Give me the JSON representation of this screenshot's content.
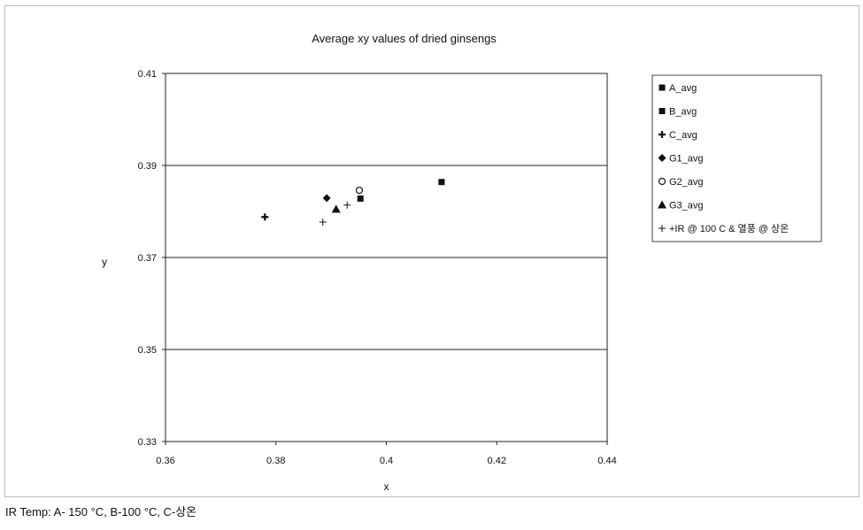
{
  "chart_data": {
    "type": "scatter",
    "title": "Average xy values of dried ginsengs",
    "xlabel": "x",
    "ylabel": "y",
    "xlim": [
      0.36,
      0.44
    ],
    "ylim": [
      0.33,
      0.41
    ],
    "x_ticks": [
      "0.36",
      "0.38",
      "0.4",
      "0.42",
      "0.44"
    ],
    "y_ticks": [
      "0.33",
      "0.35",
      "0.37",
      "0.39",
      "0.41"
    ],
    "x_tick_values": [
      0.36,
      0.38,
      0.4,
      0.42,
      0.44
    ],
    "y_tick_values": [
      0.33,
      0.35,
      0.37,
      0.39,
      0.41
    ],
    "grid": "horizontal",
    "legend_position": "right",
    "series": [
      {
        "name": "A_avg",
        "marker": "square",
        "points": [
          [
            0.41,
            0.3864
          ]
        ]
      },
      {
        "name": "B_avg",
        "marker": "square",
        "points": [
          [
            0.3953,
            0.3828
          ]
        ]
      },
      {
        "name": "C_avg",
        "marker": "cross-bold",
        "points": [
          [
            0.378,
            0.3788
          ]
        ]
      },
      {
        "name": "G1_avg",
        "marker": "diamond",
        "points": [
          [
            0.3892,
            0.3829
          ]
        ]
      },
      {
        "name": "G2_avg",
        "marker": "circle-open",
        "points": [
          [
            0.3951,
            0.3846
          ]
        ]
      },
      {
        "name": "G3_avg",
        "marker": "triangle",
        "points": [
          [
            0.3909,
            0.3805
          ]
        ]
      },
      {
        "name": "+IR @ 100 C & 열풍 @ 상온",
        "marker": "plus",
        "points": [
          [
            0.3885,
            0.3777
          ],
          [
            0.3929,
            0.3814
          ]
        ]
      }
    ]
  },
  "footnote": "IR Temp: A- 150 °C, B-100 °C, C-상온"
}
